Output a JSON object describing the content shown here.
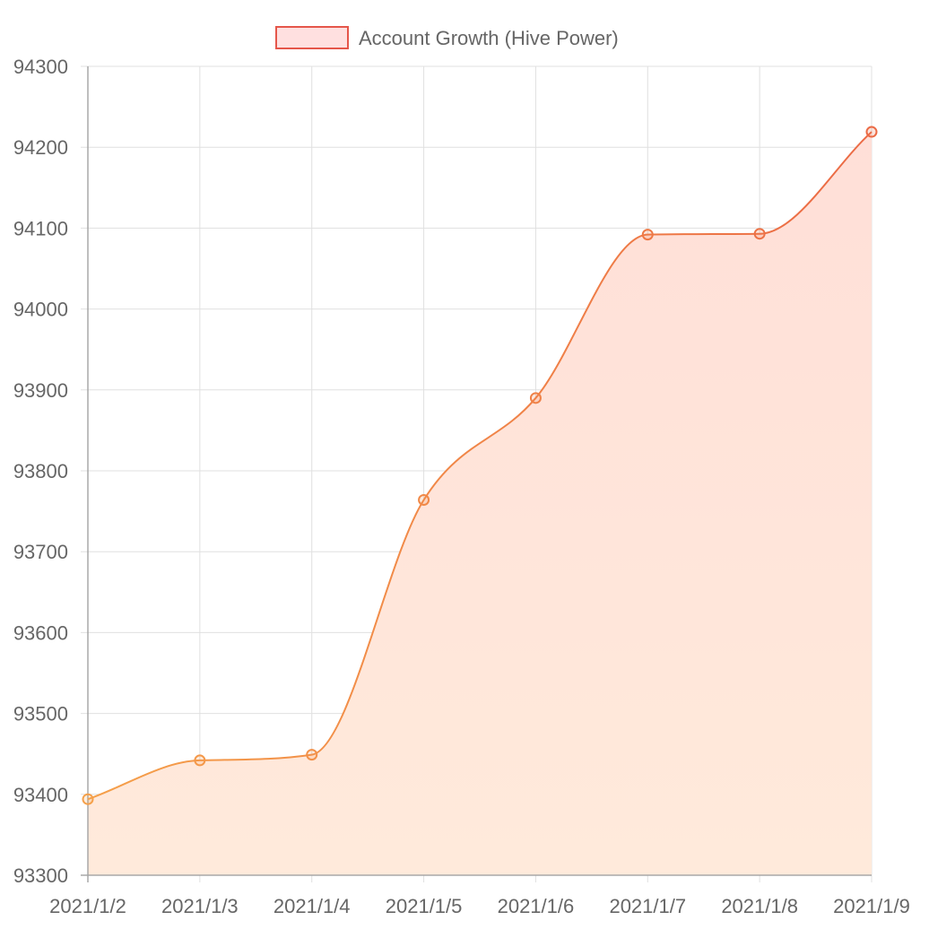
{
  "chart_data": {
    "type": "area",
    "title": "",
    "xlabel": "",
    "ylabel": "",
    "categories": [
      "2021/1/2",
      "2021/1/3",
      "2021/1/4",
      "2021/1/5",
      "2021/1/6",
      "2021/1/7",
      "2021/1/8",
      "2021/1/9"
    ],
    "series": [
      {
        "name": "Account Growth (Hive Power)",
        "values": [
          93394,
          93442,
          93449,
          93764,
          93890,
          94092,
          94093,
          94219
        ]
      }
    ],
    "ylim": [
      93300,
      94300
    ],
    "y_ticks": [
      "94300",
      "94200",
      "94100",
      "94000",
      "93900",
      "93800",
      "93700",
      "93600",
      "93500",
      "93400",
      "93300"
    ],
    "grid": true,
    "legend_position": "top",
    "colors": {
      "line_start": "#f5a04a",
      "line_end": "#eb6a45",
      "fill_top": "#ffdfd8",
      "fill_bottom": "#ffeadb",
      "legend_fill": "#ffe0e0",
      "legend_border": "#e5564a",
      "grid": "#e0e0e0",
      "axis": "#a8a8a8",
      "text": "#666666"
    }
  }
}
